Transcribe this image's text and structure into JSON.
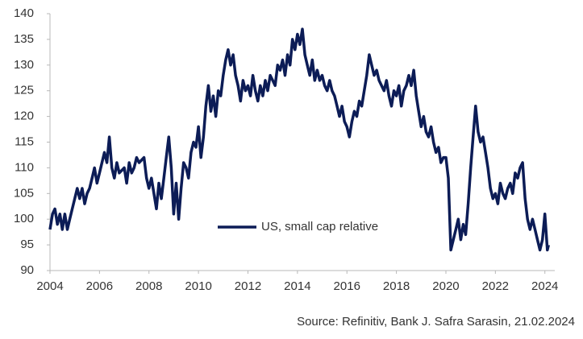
{
  "chart_data": {
    "type": "line",
    "x": [
      2004.0,
      2004.1,
      2004.2,
      2004.3,
      2004.4,
      2004.5,
      2004.6,
      2004.7,
      2004.8,
      2004.9,
      2005.0,
      2005.1,
      2005.2,
      2005.3,
      2005.4,
      2005.5,
      2005.6,
      2005.7,
      2005.8,
      2005.9,
      2006.0,
      2006.2,
      2006.3,
      2006.4,
      2006.5,
      2006.6,
      2006.7,
      2006.8,
      2007.0,
      2007.1,
      2007.2,
      2007.3,
      2007.4,
      2007.5,
      2007.6,
      2007.8,
      2007.9,
      2008.0,
      2008.1,
      2008.2,
      2008.3,
      2008.4,
      2008.5,
      2008.6,
      2008.7,
      2008.8,
      2008.9,
      2009.0,
      2009.1,
      2009.2,
      2009.3,
      2009.4,
      2009.5,
      2009.6,
      2009.7,
      2009.8,
      2009.9,
      2010.0,
      2010.1,
      2010.2,
      2010.3,
      2010.4,
      2010.5,
      2010.6,
      2010.7,
      2010.8,
      2010.9,
      2011.0,
      2011.1,
      2011.2,
      2011.3,
      2011.4,
      2011.5,
      2011.6,
      2011.7,
      2011.8,
      2011.9,
      2012.0,
      2012.1,
      2012.2,
      2012.3,
      2012.4,
      2012.5,
      2012.6,
      2012.7,
      2012.8,
      2012.9,
      2013.0,
      2013.1,
      2013.2,
      2013.3,
      2013.4,
      2013.5,
      2013.6,
      2013.7,
      2013.8,
      2013.9,
      2014.0,
      2014.1,
      2014.2,
      2014.3,
      2014.4,
      2014.5,
      2014.6,
      2014.7,
      2014.8,
      2014.9,
      2015.0,
      2015.1,
      2015.2,
      2015.3,
      2015.4,
      2015.5,
      2015.6,
      2015.7,
      2015.8,
      2015.9,
      2016.0,
      2016.1,
      2016.2,
      2016.3,
      2016.4,
      2016.5,
      2016.6,
      2016.7,
      2016.8,
      2016.9,
      2017.0,
      2017.1,
      2017.2,
      2017.3,
      2017.4,
      2017.5,
      2017.6,
      2017.7,
      2017.8,
      2017.9,
      2018.0,
      2018.1,
      2018.2,
      2018.3,
      2018.4,
      2018.5,
      2018.6,
      2018.7,
      2018.8,
      2018.9,
      2019.0,
      2019.1,
      2019.2,
      2019.3,
      2019.4,
      2019.5,
      2019.6,
      2019.7,
      2019.8,
      2019.9,
      2020.0,
      2020.1,
      2020.2,
      2020.3,
      2020.4,
      2020.5,
      2020.6,
      2020.7,
      2020.8,
      2020.9,
      2021.0,
      2021.1,
      2021.2,
      2021.3,
      2021.4,
      2021.5,
      2021.6,
      2021.7,
      2021.8,
      2021.9,
      2022.0,
      2022.1,
      2022.2,
      2022.3,
      2022.4,
      2022.5,
      2022.6,
      2022.7,
      2022.8,
      2022.9,
      2023.0,
      2023.1,
      2023.2,
      2023.3,
      2023.4,
      2023.5,
      2023.6,
      2023.7,
      2023.8,
      2023.9,
      2024.0,
      2024.1,
      2024.15
    ],
    "series": [
      {
        "name": "US, small cap relative",
        "color": "#0c1c56",
        "values": [
          98,
          101,
          102,
          99,
          101,
          98,
          101,
          98,
          100,
          102,
          104,
          106,
          104,
          106,
          103,
          105,
          106,
          108,
          110,
          107,
          109,
          113,
          111,
          116,
          110,
          108,
          111,
          109,
          110,
          107,
          111,
          109,
          110,
          112,
          111,
          112,
          108,
          106,
          108,
          105,
          102,
          107,
          104,
          108,
          112,
          116,
          110,
          101,
          107,
          100,
          106,
          111,
          110,
          108,
          113,
          115,
          114,
          118,
          112,
          116,
          122,
          126,
          121,
          124,
          120,
          125,
          124,
          128,
          131,
          133,
          130,
          132,
          128,
          126,
          123,
          127,
          125,
          126,
          124,
          128,
          125,
          123,
          126,
          124,
          127,
          125,
          128,
          127,
          126,
          130,
          129,
          131,
          128,
          132,
          130,
          135,
          133,
          136,
          134,
          137,
          132,
          130,
          128,
          131,
          127,
          129,
          127,
          128,
          126,
          125,
          127,
          125,
          124,
          122,
          120,
          122,
          119,
          118,
          116,
          119,
          121,
          120,
          123,
          122,
          125,
          128,
          132,
          130,
          128,
          129,
          127,
          126,
          125,
          127,
          124,
          122,
          125,
          124,
          126,
          122,
          125,
          126,
          128,
          126,
          129,
          124,
          121,
          118,
          120,
          117,
          116,
          118,
          115,
          113,
          114,
          111,
          112,
          112,
          108,
          94,
          96,
          98,
          100,
          96,
          99,
          97,
          103,
          110,
          116,
          122,
          117,
          115,
          116,
          113,
          110,
          106,
          104,
          105,
          103,
          107,
          105,
          104,
          106,
          107,
          105,
          109,
          108,
          110,
          111,
          104,
          100,
          98,
          100,
          98,
          96,
          94,
          96,
          101,
          94,
          95
        ]
      }
    ],
    "xlim": [
      2004,
      2024.4
    ],
    "ylim": [
      90,
      140
    ],
    "xticks": [
      2004,
      2006,
      2008,
      2010,
      2012,
      2014,
      2016,
      2018,
      2020,
      2022,
      2024
    ],
    "yticks": [
      90,
      95,
      100,
      105,
      110,
      115,
      120,
      125,
      130,
      135,
      140
    ],
    "source": "Source: Refinitiv, Bank J. Safra Sarasin, 21.02.2024"
  }
}
